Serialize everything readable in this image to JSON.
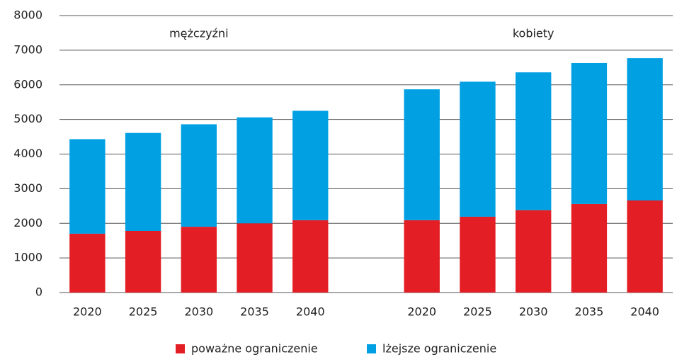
{
  "chart_data": {
    "type": "stacked_bar",
    "categories": [
      "2020",
      "2025",
      "2030",
      "2035",
      "2040",
      null,
      "2020",
      "2025",
      "2030",
      "2035",
      "2040"
    ],
    "annotations": [
      "mężczyźni",
      "kobiety"
    ],
    "series": [
      {
        "name": "poważne ograniczenie",
        "color": "#e31e24",
        "values": [
          1700,
          1780,
          1900,
          2000,
          2090,
          null,
          2090,
          2190,
          2380,
          2560,
          2660
        ]
      },
      {
        "name": "lżejsze ograniczenie",
        "color": "#00a0e3",
        "values": [
          2730,
          2830,
          2960,
          3060,
          3160,
          null,
          3780,
          3900,
          3980,
          4070,
          4110
        ]
      }
    ],
    "ylim": [
      0,
      8000
    ],
    "yticks": [
      0,
      1000,
      2000,
      3000,
      4000,
      5000,
      6000,
      7000,
      8000
    ],
    "grid": true,
    "legend": "bottom"
  }
}
